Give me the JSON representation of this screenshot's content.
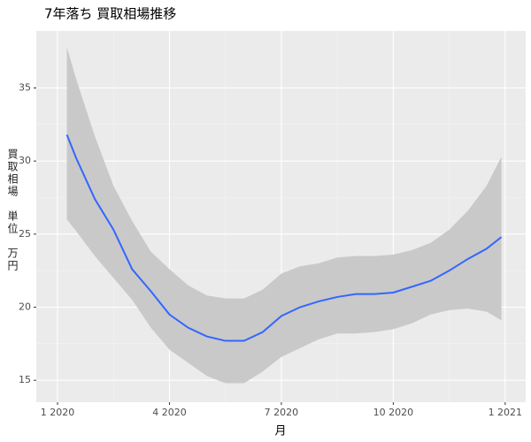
{
  "chart_data": {
    "type": "line",
    "title": "7年落ち 買取相場推移",
    "xlabel": "月",
    "ylabel": "買取相場　単位　万円",
    "x": [
      1.25,
      1.5,
      2,
      2.5,
      3,
      3.5,
      4,
      4.5,
      5,
      5.5,
      6,
      6.5,
      7,
      7.5,
      8,
      8.5,
      9,
      9.5,
      10,
      10.5,
      11,
      11.5,
      12,
      12.5,
      12.9
    ],
    "series": [
      {
        "color": "#3366ff",
        "band_color": "#c9c9c9",
        "values": [
          31.8,
          30.2,
          27.4,
          25.3,
          22.6,
          21.1,
          19.5,
          18.6,
          18.0,
          17.7,
          17.7,
          18.3,
          19.4,
          20.0,
          20.4,
          20.7,
          20.9,
          20.9,
          21.0,
          21.4,
          21.8,
          22.5,
          23.3,
          24.0,
          24.8
        ],
        "upper": [
          37.8,
          35.6,
          31.7,
          28.3,
          25.9,
          23.8,
          22.6,
          21.5,
          20.8,
          20.6,
          20.6,
          21.2,
          22.3,
          22.8,
          23.0,
          23.4,
          23.5,
          23.5,
          23.6,
          23.9,
          24.4,
          25.3,
          26.6,
          28.3,
          30.3
        ],
        "lower": [
          26.0,
          25.2,
          23.5,
          22.0,
          20.5,
          18.6,
          17.1,
          16.2,
          15.3,
          14.8,
          14.8,
          15.6,
          16.6,
          17.2,
          17.8,
          18.2,
          18.2,
          18.3,
          18.5,
          18.9,
          19.5,
          19.8,
          19.9,
          19.7,
          19.1
        ]
      }
    ],
    "xlim": [
      0.43,
      13.55
    ],
    "xticks": [
      {
        "value": 1,
        "label": "1 2020"
      },
      {
        "value": 4,
        "label": "4 2020"
      },
      {
        "value": 7,
        "label": "7 2020"
      },
      {
        "value": 10,
        "label": "10 2020"
      },
      {
        "value": 13,
        "label": "1 2021"
      }
    ],
    "ylim": [
      13.5,
      38.9
    ],
    "yticks": [
      15,
      20,
      25,
      30,
      35
    ],
    "grid": true,
    "panel_color": "#ebebeb"
  }
}
